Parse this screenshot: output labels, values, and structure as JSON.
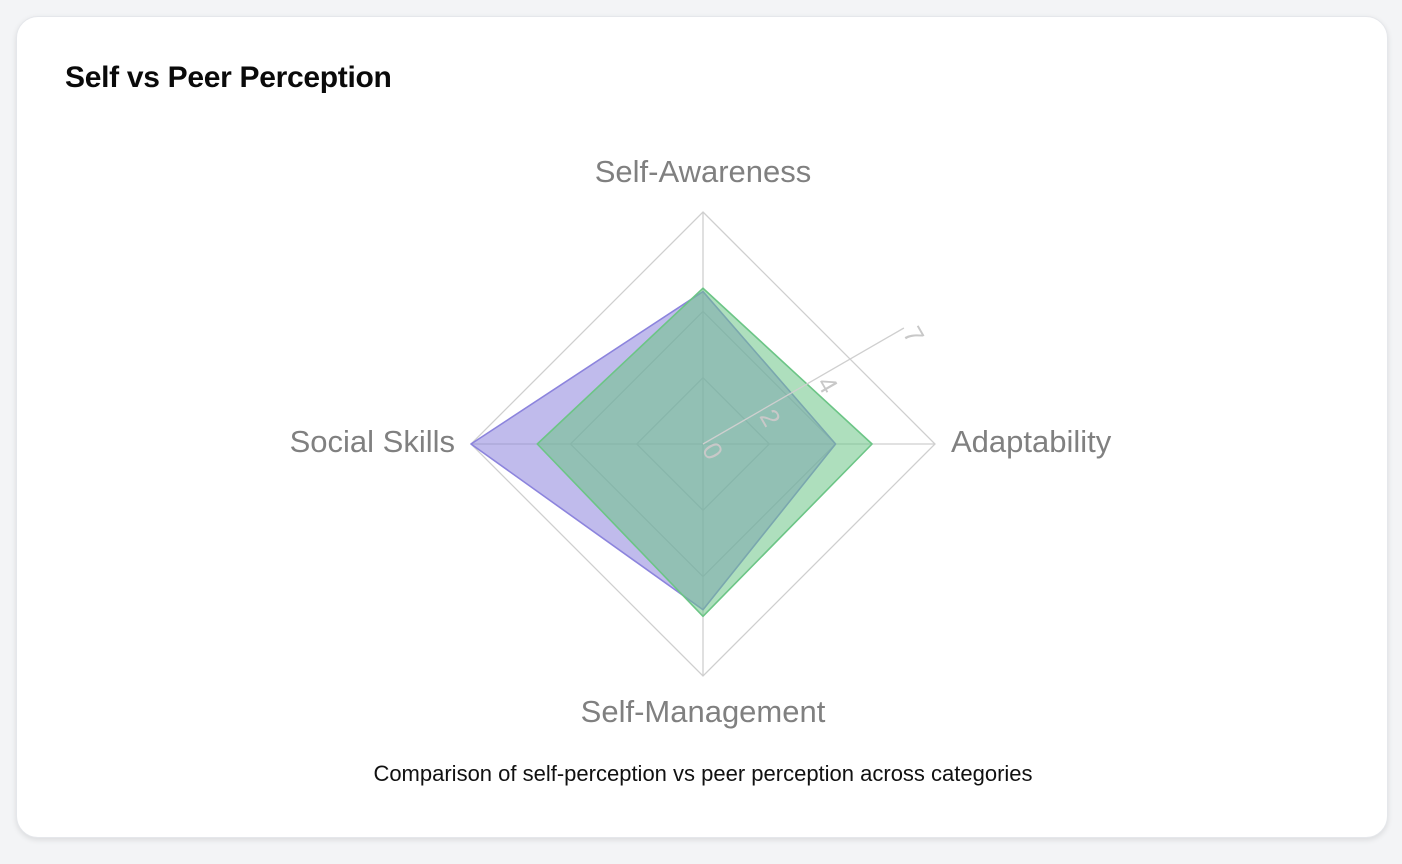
{
  "card": {
    "title": "Self vs Peer Perception",
    "caption": "Comparison of self-perception vs peer perception across categories"
  },
  "chart_data": {
    "type": "radar",
    "axes": [
      "Self-Awareness",
      "Adaptability",
      "Self-Management",
      "Social Skills"
    ],
    "radial_ticks": [
      0,
      2,
      4,
      7
    ],
    "r_range": [
      0,
      7
    ],
    "series": [
      {
        "values": [
          4.6,
          4.0,
          5.0,
          7.0
        ],
        "color": "#8c84dd"
      },
      {
        "values": [
          4.7,
          5.1,
          5.2,
          5.0
        ],
        "color": "#6cc586"
      }
    ],
    "grid": true
  }
}
